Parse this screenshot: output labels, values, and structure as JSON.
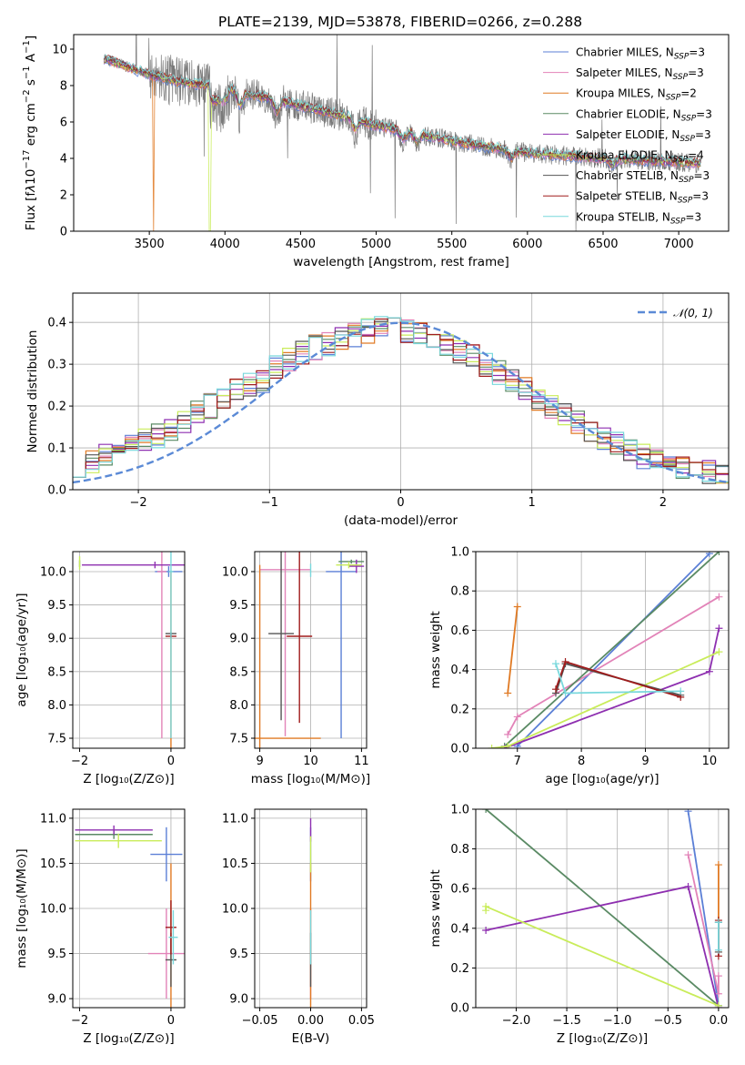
{
  "figure_title": "PLATE=2139, MJD=53878, FIBERID=0266, z=0.288",
  "colors": {
    "chab_miles": "#5b7fd6",
    "salp_miles": "#e283b8",
    "krou_miles": "#e07a24",
    "chab_elodie": "#5a8a64",
    "salp_elodie": "#8e2fb0",
    "krou_elodie": "#c9ec5a",
    "chab_stelib": "#555555",
    "salp_stelib": "#a01c1c",
    "krou_stelib": "#78d8dc",
    "data_gray": "#7a7a7a",
    "normal_curve": "#5b8ad6"
  },
  "chart_data": [
    {
      "id": "spectrum",
      "type": "line",
      "title": "PLATE=2139, MJD=53878, FIBERID=0266, z=0.288",
      "xlabel": "wavelength [Angstrom, rest frame]",
      "ylabel_html": "Flux [f<tspan font-style='italic'>λ</tspan>10<tspan dy='-6' font-size='10'>−17</tspan><tspan dy='6'> erg cm</tspan><tspan dy='-6' font-size='10'>−2</tspan><tspan dy='6'> s</tspan><tspan dy='-6' font-size='10'>−1</tspan><tspan dy='6'> A</tspan><tspan dy='-6' font-size='10'>−1</tspan><tspan dy='6'>]</tspan>",
      "xlim": [
        3000,
        7330
      ],
      "ylim": [
        0,
        10.8
      ],
      "xticks": [
        3500,
        4000,
        4500,
        5000,
        5500,
        6000,
        6500,
        7000
      ],
      "yticks": [
        0,
        2,
        4,
        6,
        8,
        10
      ],
      "legend_position": "top-right",
      "legend": [
        {
          "label": "Chabrier MILES, N",
          "sub": "SSP",
          "suffix": "=3",
          "color": "#5b7fd6"
        },
        {
          "label": "Salpeter MILES, N",
          "sub": "SSP",
          "suffix": "=3",
          "color": "#e283b8"
        },
        {
          "label": "Kroupa MILES, N",
          "sub": "SSP",
          "suffix": "=2",
          "color": "#e07a24"
        },
        {
          "label": "Chabrier ELODIE, N",
          "sub": "SSP",
          "suffix": "=3",
          "color": "#5a8a64"
        },
        {
          "label": "Salpeter ELODIE, N",
          "sub": "SSP",
          "suffix": "=3",
          "color": "#8e2fb0"
        },
        {
          "label": "Kroupa ELODIE, N",
          "sub": "SSP",
          "suffix": "=4",
          "color": "#c9ec5a"
        },
        {
          "label": "Chabrier STELIB, N",
          "sub": "SSP",
          "suffix": "=3",
          "color": "#555555"
        },
        {
          "label": "Salpeter STELIB, N",
          "sub": "SSP",
          "suffix": "=3",
          "color": "#a01c1c"
        },
        {
          "label": "Kroupa STELIB, N",
          "sub": "SSP",
          "suffix": "=3",
          "color": "#78d8dc"
        }
      ],
      "continuum": {
        "x": [
          3200,
          3300,
          3500,
          3700,
          3900,
          4000,
          4100,
          4300,
          4500,
          4800,
          5000,
          5300,
          5600,
          6000,
          6500,
          7000,
          7150
        ],
        "y": [
          9.5,
          9.2,
          8.6,
          8.2,
          8.0,
          7.9,
          7.6,
          7.3,
          6.9,
          6.3,
          5.8,
          5.3,
          4.8,
          4.3,
          4.0,
          3.8,
          3.7
        ]
      }
    },
    {
      "id": "residuals",
      "type": "line",
      "xlabel": "(data-model)/error",
      "ylabel": "Normed distribution",
      "xlim": [
        -2.5,
        2.5
      ],
      "ylim": [
        0,
        0.47
      ],
      "xticks": [
        -2,
        -1,
        0,
        1,
        2
      ],
      "yticks": [
        0.0,
        0.1,
        0.2,
        0.3,
        0.4
      ],
      "legend": [
        "𝒩(0, 1)"
      ],
      "legend_position": "top-right",
      "normal_curve": {
        "mean": 0,
        "std": 1
      },
      "bin_width": 0.1,
      "profile": [
        0.06,
        0.07,
        0.08,
        0.1,
        0.11,
        0.12,
        0.13,
        0.14,
        0.16,
        0.19,
        0.2,
        0.22,
        0.24,
        0.25,
        0.26,
        0.29,
        0.31,
        0.33,
        0.34,
        0.35,
        0.36,
        0.37,
        0.38,
        0.39,
        0.39,
        0.38,
        0.37,
        0.36,
        0.35,
        0.33,
        0.32,
        0.3,
        0.28,
        0.26,
        0.24,
        0.22,
        0.2,
        0.18,
        0.16,
        0.14,
        0.12,
        0.11,
        0.09,
        0.08,
        0.07,
        0.06,
        0.05,
        0.04,
        0.04,
        0.03
      ]
    },
    {
      "id": "age-vs-Z",
      "type": "scatter",
      "xlabel": "Z [log₁₀(Z/Z⊙)]",
      "ylabel": "age  [log₁₀(age/yr)]",
      "xlim": [
        -2.15,
        0.3
      ],
      "ylim": [
        7.35,
        10.3
      ],
      "xticks": [
        -2,
        0
      ],
      "yticks": [
        7.5,
        8.0,
        8.5,
        9.0,
        9.5,
        10.0
      ],
      "points": [
        {
          "s": "chab_miles",
          "x": -0.05,
          "y": 10.0,
          "xerr": 0.3,
          "yerr": 0.08
        },
        {
          "s": "salp_miles",
          "x": -0.2,
          "y": 10.0,
          "xerr": 0.1,
          "yerr": 2.5
        },
        {
          "s": "krou_miles",
          "x": 0.0,
          "y": 7.5,
          "xerr": 0.0,
          "yerr": 2.5
        },
        {
          "s": "chab_elodie",
          "x": -2.0,
          "y": 10.12,
          "xerr": 0.0,
          "yerr": 0.05
        },
        {
          "s": "salp_elodie",
          "x": -0.35,
          "y": 10.1,
          "xerr": 1.6,
          "yerr": 0.05
        },
        {
          "s": "krou_elodie",
          "x": -2.0,
          "y": 10.13,
          "xerr": 0.0,
          "yerr": 0.1
        },
        {
          "s": "chab_stelib",
          "x": 0.0,
          "y": 9.07,
          "xerr": 0.12,
          "yerr": 0.02
        },
        {
          "s": "salp_stelib",
          "x": 0.0,
          "y": 9.03,
          "xerr": 0.12,
          "yerr": 0.02
        },
        {
          "s": "krou_stelib",
          "x": 0.0,
          "y": 10.0,
          "xerr": 0.05,
          "yerr": 2.5
        }
      ]
    },
    {
      "id": "age-vs-mass",
      "type": "scatter",
      "xlabel": "mass [log₁₀(M/M⊙)]",
      "xlim": [
        8.9,
        11.1
      ],
      "ylim": [
        7.35,
        10.3
      ],
      "xticks": [
        9,
        10,
        11
      ],
      "yticks": [
        7.5,
        8.0,
        8.5,
        9.0,
        9.5,
        10.0
      ],
      "points": [
        {
          "s": "chab_miles",
          "x": 10.6,
          "y": 10.0,
          "xerr": 0.3,
          "yerr": 2.5
        },
        {
          "s": "salp_miles",
          "x": 9.5,
          "y": 10.03,
          "xerr": 0.5,
          "yerr": 2.5
        },
        {
          "s": "krou_miles",
          "x": 9.0,
          "y": 7.5,
          "xerr": 1.2,
          "yerr": 2.6
        },
        {
          "s": "chab_elodie",
          "x": 10.8,
          "y": 10.15,
          "xerr": 0.25,
          "yerr": 0.03
        },
        {
          "s": "salp_elodie",
          "x": 10.9,
          "y": 10.08,
          "xerr": 0.15,
          "yerr": 0.1
        },
        {
          "s": "krou_elodie",
          "x": 10.75,
          "y": 10.1,
          "xerr": 0.25,
          "yerr": 0.05
        },
        {
          "s": "chab_stelib",
          "x": 9.42,
          "y": 9.07,
          "xerr": 0.25,
          "yerr": 1.3
        },
        {
          "s": "salp_stelib",
          "x": 9.78,
          "y": 9.03,
          "xerr": 0.25,
          "yerr": 1.3
        },
        {
          "s": "krou_stelib",
          "x": 10.0,
          "y": 10.02,
          "xerr": 0.0,
          "yerr": 0.1
        }
      ]
    },
    {
      "id": "weight-vs-age",
      "type": "line",
      "xlabel": "age  [log₁₀(age/yr)]",
      "ylabel": "mass weight",
      "xlim": [
        6.35,
        10.3
      ],
      "ylim": [
        0,
        1.0
      ],
      "xticks": [
        7,
        8,
        9,
        10
      ],
      "yticks": [
        0.0,
        0.2,
        0.4,
        0.6,
        0.8,
        1.0
      ],
      "series": [
        {
          "s": "chab_miles",
          "x": [
            7.0,
            10.0
          ],
          "y": [
            0.01,
            0.99
          ]
        },
        {
          "s": "salp_miles",
          "x": [
            6.85,
            7.0,
            10.15
          ],
          "y": [
            0.07,
            0.16,
            0.77
          ]
        },
        {
          "s": "krou_miles",
          "x": [
            6.85,
            7.0
          ],
          "y": [
            0.28,
            0.72
          ]
        },
        {
          "s": "chab_elodie",
          "x": [
            6.8,
            10.15
          ],
          "y": [
            0.01,
            1.0
          ]
        },
        {
          "s": "salp_elodie",
          "x": [
            6.8,
            10.0,
            10.15
          ],
          "y": [
            0.0,
            0.39,
            0.61
          ]
        },
        {
          "s": "krou_elodie",
          "x": [
            6.6,
            6.85,
            10.15
          ],
          "y": [
            0.0,
            0.01,
            0.49
          ]
        },
        {
          "s": "chab_stelib",
          "x": [
            7.6,
            7.75,
            9.55
          ],
          "y": [
            0.28,
            0.43,
            0.27
          ]
        },
        {
          "s": "salp_stelib",
          "x": [
            7.6,
            7.75,
            9.55
          ],
          "y": [
            0.3,
            0.44,
            0.26
          ]
        },
        {
          "s": "krou_stelib",
          "x": [
            7.6,
            7.75,
            9.55
          ],
          "y": [
            0.43,
            0.28,
            0.29
          ]
        }
      ]
    },
    {
      "id": "mass-vs-Z",
      "type": "scatter",
      "xlabel": "Z [log₁₀(Z/Z⊙)]",
      "ylabel": "mass [log₁₀(M/M⊙)]",
      "xlim": [
        -2.15,
        0.3
      ],
      "ylim": [
        8.9,
        11.1
      ],
      "xticks": [
        -2,
        0
      ],
      "yticks": [
        9.0,
        9.5,
        10.0,
        10.5,
        11.0
      ],
      "points": [
        {
          "s": "chab_miles",
          "x": -0.1,
          "y": 10.6,
          "xerr": 0.35,
          "yerr": 0.3
        },
        {
          "s": "salp_miles",
          "x": -0.1,
          "y": 9.5,
          "xerr": 0.4,
          "yerr": 0.5
        },
        {
          "s": "krou_miles",
          "x": 0.0,
          "y": 9.5,
          "xerr": 0.0,
          "yerr": 1.0
        },
        {
          "s": "chab_elodie",
          "x": -1.25,
          "y": 10.82,
          "xerr": 0.85,
          "yerr": 0.05
        },
        {
          "s": "salp_elodie",
          "x": -1.25,
          "y": 10.87,
          "xerr": 0.85,
          "yerr": 0.05
        },
        {
          "s": "krou_elodie",
          "x": -1.15,
          "y": 10.75,
          "xerr": 0.95,
          "yerr": 0.08
        },
        {
          "s": "chab_stelib",
          "x": 0.0,
          "y": 9.43,
          "xerr": 0.12,
          "yerr": 0.3
        },
        {
          "s": "salp_stelib",
          "x": 0.0,
          "y": 9.79,
          "xerr": 0.12,
          "yerr": 0.3
        },
        {
          "s": "krou_stelib",
          "x": 0.05,
          "y": 9.68,
          "xerr": 0.1,
          "yerr": 0.3
        }
      ]
    },
    {
      "id": "mass-vs-ebv",
      "type": "scatter",
      "xlabel": "E(B-V)",
      "xlim": [
        -0.055,
        0.055
      ],
      "ylim": [
        8.9,
        11.1
      ],
      "xticks": [
        -0.05,
        0.0,
        0.05
      ],
      "yticks": [
        9.0,
        9.5,
        10.0,
        10.5,
        11.0
      ],
      "points": [
        {
          "s": "chab_miles",
          "x": 0.0,
          "y": 10.6,
          "xerr": 0.0,
          "yerr": 0.3
        },
        {
          "s": "salp_miles",
          "x": 0.0,
          "y": 9.5,
          "xerr": 0.0,
          "yerr": 0.5
        },
        {
          "s": "krou_miles",
          "x": 0.0,
          "y": 9.5,
          "xerr": 0.0,
          "yerr": 1.0
        },
        {
          "s": "salp_elodie",
          "x": 0.0,
          "y": 10.87,
          "xerr": 0.0,
          "yerr": 0.13
        },
        {
          "s": "krou_elodie",
          "x": 0.0,
          "y": 10.6,
          "xerr": 0.0,
          "yerr": 0.2
        },
        {
          "s": "chab_stelib",
          "x": 0.0,
          "y": 9.43,
          "xerr": 0.0,
          "yerr": 0.3
        },
        {
          "s": "krou_stelib",
          "x": 0.0,
          "y": 9.68,
          "xerr": 0.0,
          "yerr": 0.3
        }
      ]
    },
    {
      "id": "weight-vs-Z",
      "type": "line",
      "xlabel": "Z [log₁₀(Z/Z⊙)]",
      "ylabel": "mass weight",
      "xlim": [
        -2.4,
        0.1
      ],
      "ylim": [
        0,
        1.0
      ],
      "xticks": [
        -2.0,
        -1.5,
        -1.0,
        -0.5,
        0.0
      ],
      "yticks": [
        0.0,
        0.2,
        0.4,
        0.6,
        0.8,
        1.0
      ],
      "series": [
        {
          "s": "chab_miles",
          "x": [
            -0.3,
            0.0
          ],
          "y": [
            0.99,
            0.01
          ]
        },
        {
          "s": "salp_miles",
          "x": [
            -0.3,
            0.0,
            0.0
          ],
          "y": [
            0.77,
            0.07,
            0.16
          ]
        },
        {
          "s": "krou_miles",
          "x": [
            0.0,
            0.0
          ],
          "y": [
            0.28,
            0.72
          ]
        },
        {
          "s": "chab_elodie",
          "x": [
            -2.3,
            0.0
          ],
          "y": [
            1.0,
            0.01
          ]
        },
        {
          "s": "salp_elodie",
          "x": [
            -2.3,
            -0.3,
            0.0
          ],
          "y": [
            0.39,
            0.61,
            0.0
          ]
        },
        {
          "s": "krou_elodie",
          "x": [
            -2.3,
            -2.3,
            0.0
          ],
          "y": [
            0.49,
            0.51,
            0.01
          ]
        },
        {
          "s": "chab_stelib",
          "x": [
            0.0,
            0.0
          ],
          "y": [
            0.28,
            0.43
          ]
        },
        {
          "s": "salp_stelib",
          "x": [
            0.0,
            0.0
          ],
          "y": [
            0.26,
            0.44
          ]
        },
        {
          "s": "krou_stelib",
          "x": [
            0.0,
            0.0
          ],
          "y": [
            0.43,
            0.29
          ]
        }
      ]
    }
  ]
}
